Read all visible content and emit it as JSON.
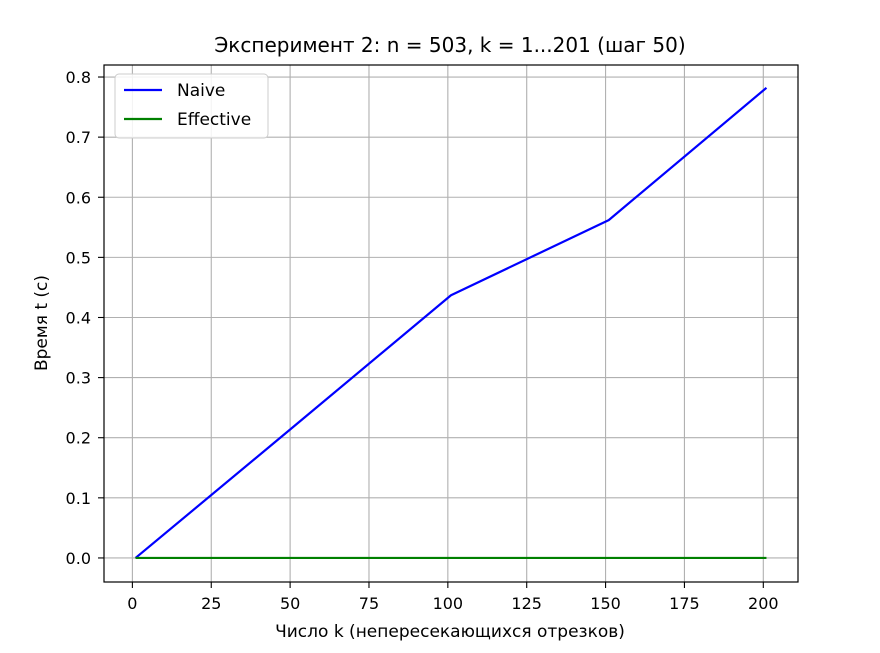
{
  "chart_data": {
    "type": "line",
    "title": "Эксперимент 2: n = 503, k = 1...201 (шаг 50)",
    "xlabel": "Число k (непересекающихся отрезков)",
    "ylabel": "Время t (с)",
    "x": [
      1,
      51,
      101,
      151,
      201
    ],
    "series": [
      {
        "name": "Naive",
        "values": [
          0.0,
          0.218,
          0.437,
          0.562,
          0.782
        ],
        "color": "#0000ff"
      },
      {
        "name": "Effective",
        "values": [
          0.0,
          0.0,
          0.0,
          0.0,
          0.0
        ],
        "color": "#008000"
      }
    ],
    "xlim": [
      -9,
      211
    ],
    "ylim": [
      -0.04,
      0.82
    ],
    "xticks": [
      0,
      25,
      50,
      75,
      100,
      125,
      150,
      175,
      200
    ],
    "yticks": [
      0.0,
      0.1,
      0.2,
      0.3,
      0.4,
      0.5,
      0.6,
      0.7,
      0.8
    ],
    "ytick_format": "1",
    "grid": true,
    "legend_position": "upper-left"
  }
}
